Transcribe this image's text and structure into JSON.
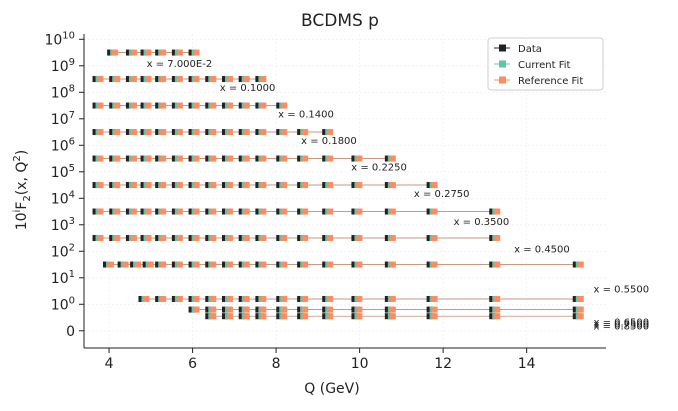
{
  "chart_data": {
    "type": "scatter",
    "title": "BCDMS p",
    "xlabel": "Q (GeV)",
    "ylabel_text": "10",
    "ylabel_sup": "i",
    "ylabel_rest": "F",
    "ylabel_sub": "2",
    "ylabel_args": "(x, Q",
    "ylabel_args_sup": "2",
    "ylabel_args_end": ")",
    "xlim": [
      3.4,
      15.9
    ],
    "x_ticks": [
      4,
      6,
      8,
      10,
      12,
      14
    ],
    "y_ticks": [
      {
        "label": "0",
        "band": 0
      },
      {
        "label": "10",
        "exp": "0",
        "band": 1
      },
      {
        "label": "10",
        "exp": "1",
        "band": 2
      },
      {
        "label": "10",
        "exp": "2",
        "band": 3
      },
      {
        "label": "10",
        "exp": "3",
        "band": 4
      },
      {
        "label": "10",
        "exp": "4",
        "band": 5
      },
      {
        "label": "10",
        "exp": "5",
        "band": 6
      },
      {
        "label": "10",
        "exp": "6",
        "band": 7
      },
      {
        "label": "10",
        "exp": "7",
        "band": 8
      },
      {
        "label": "10",
        "exp": "8",
        "band": 9
      },
      {
        "label": "10",
        "exp": "9",
        "band": 10
      },
      {
        "label": "10",
        "exp": "10",
        "band": 11
      }
    ],
    "grid": true,
    "legend_position": "top-right",
    "legend": [
      {
        "name": "Data",
        "color": "#222222"
      },
      {
        "name": "Current Fit",
        "color": "#66c2a5"
      },
      {
        "name": "Reference Fit",
        "color": "#fc8d62"
      }
    ],
    "colors": {
      "data": "#222222",
      "current": "#66c2a5",
      "reference": "#fc8d62",
      "line": "#b3785a"
    },
    "bins": [
      {
        "label": "x = 7.000E-2",
        "band": 10.5,
        "label_at": [
          4.9,
          10.1
        ],
        "x": [
          4.05,
          4.5,
          4.85,
          5.2,
          5.6,
          6.0
        ]
      },
      {
        "label": "x = 0.1000",
        "band": 9.5,
        "label_at": [
          6.65,
          9.2
        ],
        "x": [
          3.7,
          4.1,
          4.5,
          4.85,
          5.2,
          5.6,
          6.0,
          6.4,
          6.8,
          7.2,
          7.6
        ]
      },
      {
        "label": "x = 0.1400",
        "band": 8.5,
        "label_at": [
          8.05,
          8.2
        ],
        "x": [
          3.7,
          4.1,
          4.5,
          4.85,
          5.2,
          5.6,
          6.0,
          6.4,
          6.8,
          7.2,
          7.6,
          8.1
        ]
      },
      {
        "label": "x = 0.1800",
        "band": 7.5,
        "label_at": [
          8.6,
          7.2
        ],
        "x": [
          3.7,
          4.1,
          4.5,
          4.85,
          5.2,
          5.6,
          6.0,
          6.4,
          6.8,
          7.2,
          7.6,
          8.1,
          8.6,
          9.2
        ]
      },
      {
        "label": "x = 0.2250",
        "band": 6.5,
        "label_at": [
          9.8,
          6.2
        ],
        "x": [
          3.7,
          4.1,
          4.5,
          4.85,
          5.2,
          5.6,
          6.0,
          6.4,
          6.8,
          7.2,
          7.6,
          8.1,
          8.6,
          9.2,
          9.9,
          10.7
        ]
      },
      {
        "label": "x = 0.2750",
        "band": 5.5,
        "label_at": [
          11.3,
          5.2
        ],
        "x": [
          3.7,
          4.1,
          4.5,
          4.85,
          5.2,
          5.6,
          6.0,
          6.4,
          6.8,
          7.2,
          7.6,
          8.1,
          8.6,
          9.2,
          9.9,
          10.7,
          11.7
        ]
      },
      {
        "label": "x = 0.3500",
        "band": 4.5,
        "label_at": [
          12.25,
          4.15
        ],
        "x": [
          3.7,
          4.1,
          4.5,
          4.85,
          5.2,
          5.6,
          6.0,
          6.4,
          6.8,
          7.2,
          7.6,
          8.1,
          8.6,
          9.2,
          9.9,
          10.7,
          11.7,
          13.2
        ]
      },
      {
        "label": "x = 0.4500",
        "band": 3.5,
        "label_at": [
          13.7,
          3.1
        ],
        "x": [
          3.7,
          4.1,
          4.5,
          4.85,
          5.2,
          5.6,
          6.0,
          6.4,
          6.8,
          7.2,
          7.6,
          8.1,
          8.6,
          9.2,
          9.9,
          10.7,
          11.7,
          13.2
        ]
      },
      {
        "label": "x = 0.5500",
        "band": 2.5,
        "label_at": [
          15.6,
          1.6
        ],
        "x": [
          3.95,
          4.3,
          4.6,
          4.9,
          5.2,
          5.6,
          6.0,
          6.4,
          6.8,
          7.2,
          7.6,
          8.1,
          8.6,
          9.2,
          9.9,
          10.7,
          11.7,
          13.2,
          15.2
        ]
      },
      {
        "label": "x = 0.6500",
        "band": 1.2,
        "label_at": [
          15.6,
          0.35
        ],
        "x": [
          4.8,
          5.2,
          5.6,
          6.0,
          6.4,
          6.8,
          7.2,
          7.6,
          8.1,
          8.6,
          9.2,
          9.9,
          10.7,
          11.7,
          13.2,
          15.2
        ]
      },
      {
        "label": "x = 0.7500",
        "band": 0.8,
        "label_at": [
          15.6,
          0.28
        ],
        "x": [
          6.0,
          6.4,
          6.8,
          7.2,
          7.6,
          8.1,
          8.6,
          9.2,
          9.9,
          10.7,
          11.7,
          13.2,
          15.2
        ]
      },
      {
        "label": "x = 0.8500",
        "band": 0.55,
        "label_at": [
          15.6,
          0.2
        ],
        "x": [
          6.4,
          6.8,
          7.2,
          7.6,
          8.1,
          8.6,
          9.2,
          9.9,
          10.7,
          11.7,
          13.2,
          15.2
        ]
      }
    ]
  }
}
